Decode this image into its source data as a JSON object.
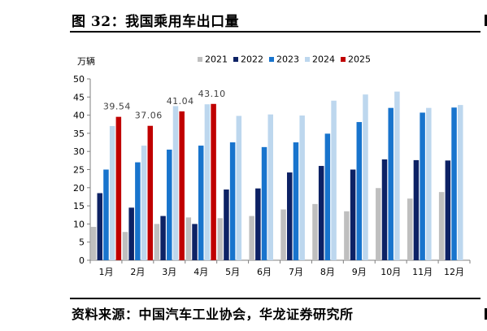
{
  "figure_title": "图 32：我国乘用车出口量",
  "source_note": "资料来源：中国汽车工业协会，华龙证券研究所",
  "colors": {
    "2021": "#bfbfbf",
    "2022": "#0d2265",
    "2023": "#1874cd",
    "2024": "#bdd7ee",
    "2025": "#c00000"
  },
  "chart_data": {
    "type": "bar",
    "ylabel": "万辆",
    "ylim": [
      0,
      50
    ],
    "yticks": [
      0,
      5,
      10,
      15,
      20,
      25,
      30,
      35,
      40,
      45,
      50
    ],
    "grid": false,
    "legend_position": "top",
    "categories": [
      "1月",
      "2月",
      "3月",
      "4月",
      "5月",
      "6月",
      "7月",
      "8月",
      "9月",
      "10月",
      "11月",
      "12月"
    ],
    "series": [
      {
        "name": "2021",
        "values": [
          9.2,
          7.8,
          10.0,
          11.8,
          11.6,
          12.2,
          14.0,
          15.5,
          13.5,
          19.9,
          17.0,
          18.8
        ]
      },
      {
        "name": "2022",
        "values": [
          18.5,
          14.5,
          12.2,
          10.0,
          19.5,
          19.8,
          24.2,
          26.0,
          25.0,
          27.8,
          27.6,
          27.5
        ]
      },
      {
        "name": "2023",
        "values": [
          25.0,
          27.0,
          30.5,
          31.6,
          32.5,
          31.2,
          32.5,
          34.9,
          38.1,
          42.0,
          40.7,
          42.1
        ]
      },
      {
        "name": "2024",
        "values": [
          37.0,
          31.6,
          42.5,
          43.0,
          39.8,
          40.2,
          39.9,
          44.0,
          45.7,
          46.5,
          42.0,
          42.8
        ]
      },
      {
        "name": "2025",
        "values": [
          39.54,
          37.06,
          41.04,
          43.1,
          null,
          null,
          null,
          null,
          null,
          null,
          null,
          null
        ]
      }
    ],
    "data_labels": [
      {
        "series": "2025",
        "category": "1月",
        "text": "39.54"
      },
      {
        "series": "2025",
        "category": "2月",
        "text": "37.06"
      },
      {
        "series": "2025",
        "category": "3月",
        "text": "41.04"
      },
      {
        "series": "2025",
        "category": "4月",
        "text": "43.10"
      }
    ]
  }
}
